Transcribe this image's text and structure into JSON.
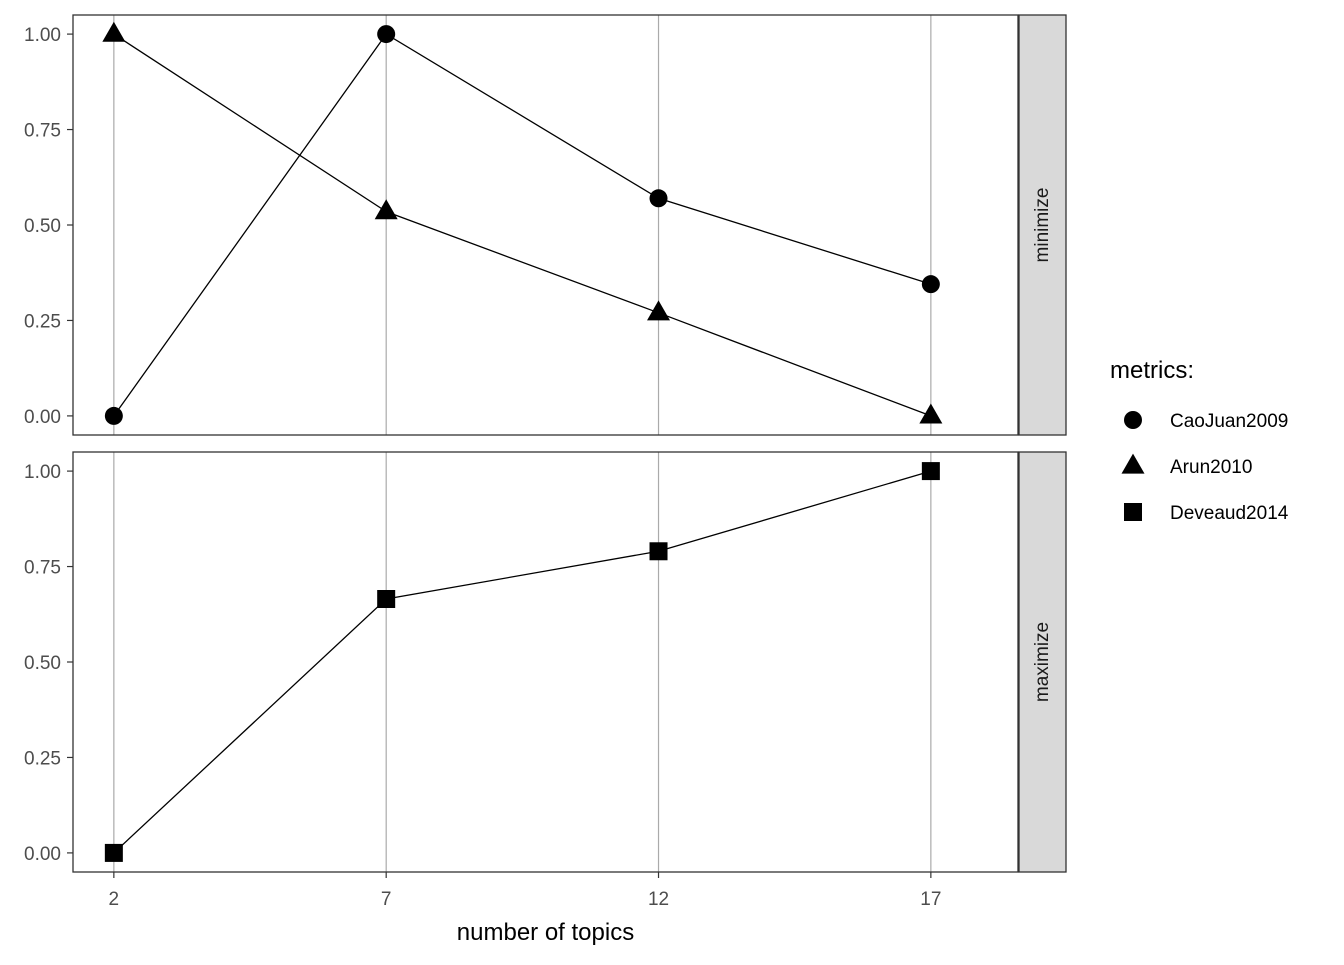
{
  "chart_data": {
    "type": "line",
    "xlabel": "number of topics",
    "ylabel": "",
    "x_ticks": [
      2,
      7,
      12,
      17
    ],
    "xlim": [
      1.25,
      18.6
    ],
    "legend": {
      "title": "metrics:",
      "placement": "right",
      "entries": [
        {
          "name": "CaoJuan2009",
          "shape": "circle"
        },
        {
          "name": "Arun2010",
          "shape": "triangle"
        },
        {
          "name": "Deveaud2014",
          "shape": "square"
        }
      ]
    },
    "panels": [
      {
        "strip_label": "minimize",
        "ylim": [
          -0.05,
          1.05
        ],
        "y_ticks": [
          "0.00",
          "0.25",
          "0.50",
          "0.75",
          "1.00"
        ],
        "series": [
          {
            "name": "CaoJuan2009",
            "shape": "circle",
            "x": [
              2,
              7,
              12,
              17
            ],
            "y": [
              0.0,
              1.0,
              0.57,
              0.345
            ]
          },
          {
            "name": "Arun2010",
            "shape": "triangle",
            "x": [
              2,
              7,
              12,
              17
            ],
            "y": [
              1.0,
              0.535,
              0.27,
              0.0
            ]
          }
        ]
      },
      {
        "strip_label": "maximize",
        "ylim": [
          -0.05,
          1.05
        ],
        "y_ticks": [
          "0.00",
          "0.25",
          "0.50",
          "0.75",
          "1.00"
        ],
        "series": [
          {
            "name": "Deveaud2014",
            "shape": "square",
            "x": [
              2,
              7,
              12,
              17
            ],
            "y": [
              0.0,
              0.665,
              0.79,
              1.0
            ]
          }
        ]
      }
    ],
    "colors": {
      "panel_border": "#333333",
      "grid": "#aaaaaa",
      "strip_fill": "#d9d9d9",
      "line": "#000000",
      "marker": "#000000"
    }
  }
}
